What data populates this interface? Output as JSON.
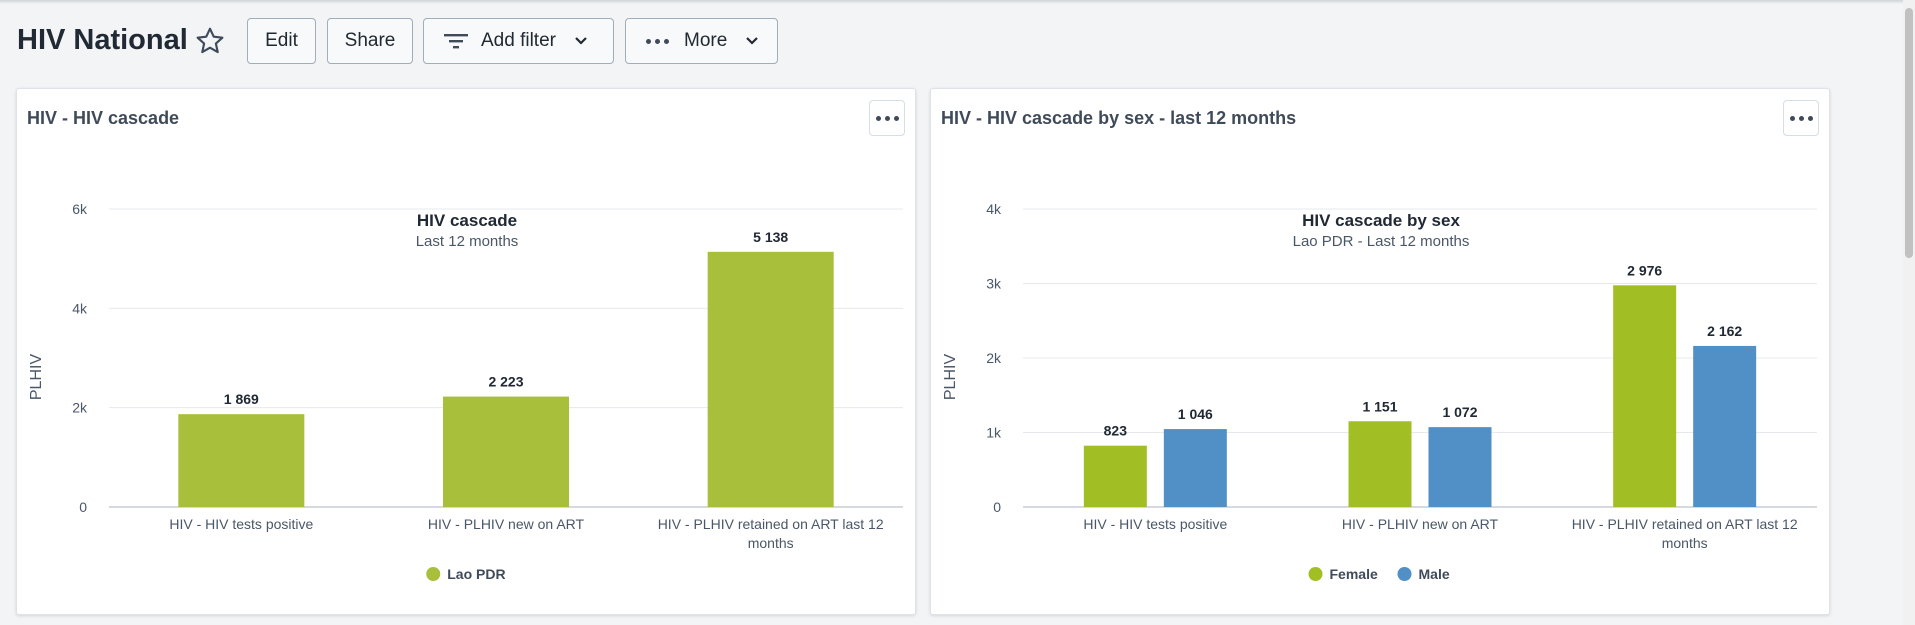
{
  "page": {
    "title": "HIV National"
  },
  "toolbar": {
    "edit_label": "Edit",
    "share_label": "Share",
    "filter_label": "Add filter",
    "more_label": "More"
  },
  "colors": {
    "primary_series": "#a8bf3b",
    "female": "#a1bf25",
    "male": "#518fc7"
  },
  "cards": [
    {
      "title": "HIV - HIV cascade",
      "chart_data": {
        "type": "bar",
        "title": "HIV cascade",
        "subtitle": "Last 12 months",
        "ylabel": "PLHIV",
        "ylim": [
          0,
          6000
        ],
        "yticks": [
          0,
          2000,
          4000,
          6000
        ],
        "ytick_labels": [
          "0",
          "2k",
          "4k",
          "6k"
        ],
        "categories": [
          "HIV - HIV tests positive",
          "HIV - PLHIV new on ART",
          "HIV - PLHIV retained on ART last 12 months"
        ],
        "series": [
          {
            "name": "Lao PDR",
            "color": "#a8bf3b",
            "values": [
              1869,
              2223,
              5138
            ],
            "labels": [
              "1 869",
              "2 223",
              "5 138"
            ]
          }
        ],
        "legend_position": "bottom",
        "grid": true
      }
    },
    {
      "title": "HIV - HIV cascade by sex - last 12 months",
      "chart_data": {
        "type": "bar",
        "title": "HIV cascade by sex",
        "subtitle": "Lao PDR - Last 12 months",
        "ylabel": "PLHIV",
        "ylim": [
          0,
          4000
        ],
        "yticks": [
          0,
          1000,
          2000,
          3000,
          4000
        ],
        "ytick_labels": [
          "0",
          "1k",
          "2k",
          "3k",
          "4k"
        ],
        "categories": [
          "HIV - HIV tests positive",
          "HIV - PLHIV new on ART",
          "HIV - PLHIV retained on ART last 12 months"
        ],
        "series": [
          {
            "name": "Female",
            "color": "#a1bf25",
            "values": [
              823,
              1151,
              2976
            ],
            "labels": [
              "823",
              "1 151",
              "2 976"
            ]
          },
          {
            "name": "Male",
            "color": "#518fc7",
            "values": [
              1046,
              1072,
              2162
            ],
            "labels": [
              "1 046",
              "1 072",
              "2 162"
            ]
          }
        ],
        "legend_position": "bottom",
        "grid": true
      }
    }
  ]
}
